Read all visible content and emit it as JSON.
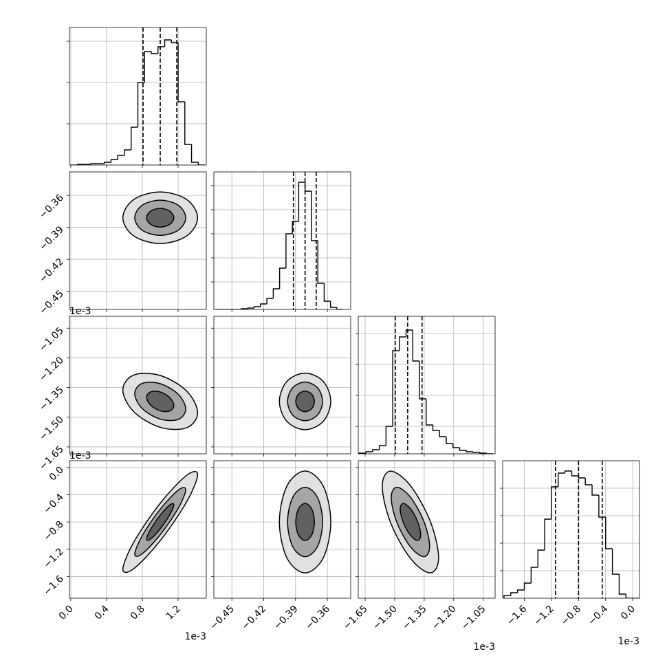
{
  "chart_data": {
    "type": "corner",
    "grid": true,
    "line_color": "#000000",
    "contour_colors": [
      "#dcdcdc",
      "#9a9a9a",
      "#555555"
    ],
    "params": [
      {
        "xlim": [
          -0.015,
          1.515
        ],
        "xticks": [
          {
            "value": 0,
            "label": "0.0"
          },
          0.4,
          0.8,
          1.2
        ],
        "offset": "1e-3",
        "quantiles": [
          0.808,
          1.0,
          1.185
        ],
        "hist": {
          "bins": [
            0,
            0.075,
            0.15,
            0.225,
            0.3,
            0.375,
            0.45,
            0.525,
            0.6,
            0.675,
            0.75,
            0.825,
            0.9,
            0.975,
            1.05,
            1.125,
            1.2,
            1.275,
            1.35,
            1.425,
            1.5
          ],
          "counts": [
            0,
            1,
            1,
            2,
            2,
            4,
            8,
            14,
            22,
            55,
            120,
            165,
            162,
            172,
            182,
            178,
            92,
            30,
            4,
            0
          ],
          "ylim": [
            0,
            200
          ],
          "yticks": [
            60,
            120,
            180
          ]
        }
      },
      {
        "xlim": [
          -0.467,
          -0.338
        ],
        "xticks": [
          {
            "value": -0.45,
            "label": "−0.45"
          },
          {
            "value": -0.42,
            "label": "−0.42"
          },
          {
            "value": -0.39,
            "label": "−0.39"
          },
          {
            "value": -0.36,
            "label": "−0.36"
          }
        ],
        "quantiles": [
          -0.392,
          -0.381,
          -0.3705
        ],
        "hist": {
          "bins": [
            -0.465,
            -0.459,
            -0.453,
            -0.447,
            -0.441,
            -0.435,
            -0.429,
            -0.423,
            -0.417,
            -0.411,
            -0.405,
            -0.399,
            -0.393,
            -0.387,
            -0.381,
            -0.375,
            -0.369,
            -0.363,
            -0.357,
            -0.351,
            -0.345
          ],
          "counts": [
            0,
            0,
            0,
            0,
            1,
            2,
            4,
            8,
            16,
            30,
            60,
            110,
            128,
            185,
            172,
            100,
            38,
            12,
            3,
            0
          ],
          "ylim": [
            0,
            200
          ],
          "yticks": [
            40,
            75,
            110,
            145,
            180
          ]
        }
      },
      {
        "xlim": [
          -1.685,
          -0.99
        ],
        "xticks": [
          {
            "value": -1.65,
            "label": "−1.65"
          },
          {
            "value": -1.5,
            "label": "−1.50"
          },
          {
            "value": -1.35,
            "label": "−1.35"
          },
          {
            "value": -1.2,
            "label": "−1.20"
          },
          {
            "value": -1.05,
            "label": "−1.05"
          }
        ],
        "offset": "1e-3",
        "quantiles": [
          -1.497,
          -1.434,
          -1.361
        ],
        "hist": {
          "bins": [
            -1.68,
            -1.646,
            -1.612,
            -1.578,
            -1.544,
            -1.51,
            -1.476,
            -1.442,
            -1.408,
            -1.374,
            -1.34,
            -1.306,
            -1.272,
            -1.238,
            -1.204,
            -1.17,
            -1.136,
            -1.102,
            -1.068,
            -1.034,
            -1.0
          ],
          "counts": [
            1,
            3,
            6,
            12,
            40,
            150,
            170,
            180,
            135,
            80,
            42,
            34,
            25,
            15,
            9,
            5,
            3,
            2,
            1,
            0
          ],
          "ylim": [
            0,
            200
          ],
          "yticks": [
            40,
            85,
            130,
            175
          ]
        }
      },
      {
        "xlim": [
          -1.92,
          0.1
        ],
        "xticks": [
          {
            "value": -1.6,
            "label": "−1.6"
          },
          {
            "value": -1.2,
            "label": "−1.2"
          },
          {
            "value": -0.8,
            "label": "−0.8"
          },
          {
            "value": -0.4,
            "label": "−0.4"
          },
          {
            "value": 0,
            "label": "0.0"
          }
        ],
        "offset": "1e-3",
        "quantiles": [
          -1.14,
          -0.8,
          -0.45
        ],
        "hist": {
          "bins": [
            -1.9,
            -1.8,
            -1.7,
            -1.6,
            -1.5,
            -1.4,
            -1.3,
            -1.2,
            -1.1,
            -1.0,
            -0.9,
            -0.8,
            -0.7,
            -0.6,
            -0.5,
            -0.4,
            -0.3,
            -0.2,
            -0.1,
            0.0,
            0.1
          ],
          "counts": [
            4,
            8,
            12,
            22,
            45,
            70,
            115,
            162,
            182,
            185,
            178,
            175,
            165,
            150,
            118,
            72,
            35,
            6,
            0,
            0
          ],
          "ylim": [
            0,
            200
          ],
          "yticks": [
            40,
            80,
            120,
            160
          ]
        }
      }
    ],
    "pairs": [
      [
        {
          "contours": [
            {
              "x": [
                1.418,
                1.296,
                1.0,
                0.704,
                0.582,
                0.704,
                1.0,
                1.296
              ],
              "y": [
                -0.381,
                -0.3639,
                -0.3568,
                -0.3639,
                -0.381,
                -0.3981,
                -0.4052,
                -0.3981
              ]
            },
            {
              "x": [
                1.285,
                1.202,
                1.0,
                0.798,
                0.715,
                0.798,
                1.0,
                1.202
              ],
              "y": [
                -0.381,
                -0.3693,
                -0.3645,
                -0.3693,
                -0.381,
                -0.3927,
                -0.3975,
                -0.3927
              ]
            },
            {
              "x": [
                1.152,
                1.107,
                1.0,
                0.893,
                0.848,
                0.893,
                1.0,
                1.107
              ],
              "y": [
                -0.381,
                -0.3748,
                -0.3722,
                -0.3748,
                -0.381,
                -0.3872,
                -0.3898,
                -0.3872
              ]
            }
          ]
        }
      ],
      [
        {
          "contours": [
            {
              "x": [
                1.418,
                1.296,
                1.0,
                0.704,
                0.582,
                0.704,
                1.0,
                1.296
              ],
              "y": [
                -1.4772,
                -1.3678,
                -1.2889,
                -1.2869,
                -1.3628,
                -1.4722,
                -1.5511,
                -1.5531
              ]
            },
            {
              "x": [
                1.285,
                1.202,
                1.0,
                0.798,
                0.715,
                0.798,
                1.0,
                1.202
              ],
              "y": [
                -1.459,
                -1.3844,
                -1.3306,
                -1.3292,
                -1.381,
                -1.4556,
                -1.5094,
                -1.5108
              ]
            },
            {
              "x": [
                1.152,
                1.107,
                1.0,
                0.893,
                0.848,
                0.893,
                1.0,
                1.107
              ],
              "y": [
                -1.4408,
                -1.401,
                -1.3723,
                -1.3716,
                -1.3992,
                -1.439,
                -1.4677,
                -1.4684
              ]
            }
          ]
        },
        {
          "contours": [
            {
              "x": [
                -0.3568,
                -0.3639,
                -0.381,
                -0.3981,
                -0.4052,
                -0.3981,
                -0.381,
                -0.3639
              ],
              "y": [
                -1.42,
                -1.3189,
                -1.277,
                -1.3189,
                -1.42,
                -1.5211,
                -1.563,
                -1.5211
              ]
            },
            {
              "x": [
                -0.3645,
                -0.3693,
                -0.381,
                -0.3927,
                -0.3975,
                -0.3927,
                -0.381,
                -0.3693
              ],
              "y": [
                -1.42,
                -1.3511,
                -1.3225,
                -1.3511,
                -1.42,
                -1.4889,
                -1.5175,
                -1.4889
              ]
            },
            {
              "x": [
                -0.3722,
                -0.3748,
                -0.381,
                -0.3872,
                -0.3898,
                -0.3872,
                -0.381,
                -0.3748
              ],
              "y": [
                -1.42,
                -1.3832,
                -1.368,
                -1.3832,
                -1.42,
                -1.4568,
                -1.472,
                -1.4568
              ]
            }
          ]
        }
      ],
      [
        {
          "contours": [
            {
              "x": [
                1.418,
                1.296,
                1.0,
                0.704,
                0.582,
                0.704,
                1.0,
                1.296
              ],
              "y": [
                -0.1044,
                -0.1138,
                -0.525,
                -1.0974,
                -1.4956,
                -1.4862,
                -1.075,
                -0.5026
              ]
            },
            {
              "x": [
                1.285,
                1.202,
                1.0,
                0.798,
                0.715,
                0.798,
                1.0,
                1.202
              ],
              "y": [
                -0.3257,
                -0.3321,
                -0.6125,
                -1.0028,
                -1.2743,
                -1.2679,
                -0.9875,
                -0.5972
              ]
            },
            {
              "x": [
                1.152,
                1.107,
                1.0,
                0.893,
                0.848,
                0.893,
                1.0,
                1.107
              ],
              "y": [
                -0.547,
                -0.5505,
                -0.7,
                -0.9081,
                -1.053,
                -1.0495,
                -0.9,
                -0.6919
              ]
            }
          ]
        },
        {
          "contours": [
            {
              "x": [
                -0.3568,
                -0.3639,
                -0.381,
                -0.3981,
                -0.4052,
                -0.3981,
                -0.381,
                -0.3639
              ],
              "y": [
                -0.8,
                -0.2712,
                -0.052,
                -0.2712,
                -0.8,
                -1.3288,
                -1.548,
                -1.3288
              ]
            },
            {
              "x": [
                -0.3645,
                -0.3693,
                -0.381,
                -0.3927,
                -0.3975,
                -0.3927,
                -0.381,
                -0.3693
              ],
              "y": [
                -0.8,
                -0.4394,
                -0.29,
                -0.4394,
                -0.8,
                -1.1606,
                -1.31,
                -1.1606
              ]
            },
            {
              "x": [
                -0.3722,
                -0.3748,
                -0.381,
                -0.3872,
                -0.3898,
                -0.3872,
                -0.381,
                -0.3748
              ],
              "y": [
                -0.8,
                -0.6077,
                -0.528,
                -0.6077,
                -0.8,
                -0.9923,
                -1.072,
                -0.9923
              ]
            }
          ]
        },
        {
          "contours": [
            {
              "x": [
                -1.277,
                -1.3189,
                -1.42,
                -1.5211,
                -1.563,
                -1.5211,
                -1.42,
                -1.3189
              ],
              "y": [
                -1.3236,
                -0.7926,
                -0.266,
                -0.0522,
                -0.2764,
                -0.8074,
                -1.334,
                -1.5478
              ]
            },
            {
              "x": [
                -1.3225,
                -1.3511,
                -1.42,
                -1.4889,
                -1.5175,
                -1.4889,
                -1.42,
                -1.3511
              ],
              "y": [
                -1.157,
                -0.795,
                -0.4359,
                -0.2902,
                -0.443,
                -0.805,
                -1.1641,
                -1.3098
              ]
            },
            {
              "x": [
                -1.368,
                -1.3832,
                -1.42,
                -1.4568,
                -1.472,
                -1.4568,
                -1.42,
                -1.3832
              ],
              "y": [
                -0.9904,
                -0.7973,
                -0.6058,
                -0.5281,
                -0.6096,
                -0.8027,
                -0.9942,
                -1.0719
              ]
            }
          ]
        }
      ]
    ]
  }
}
